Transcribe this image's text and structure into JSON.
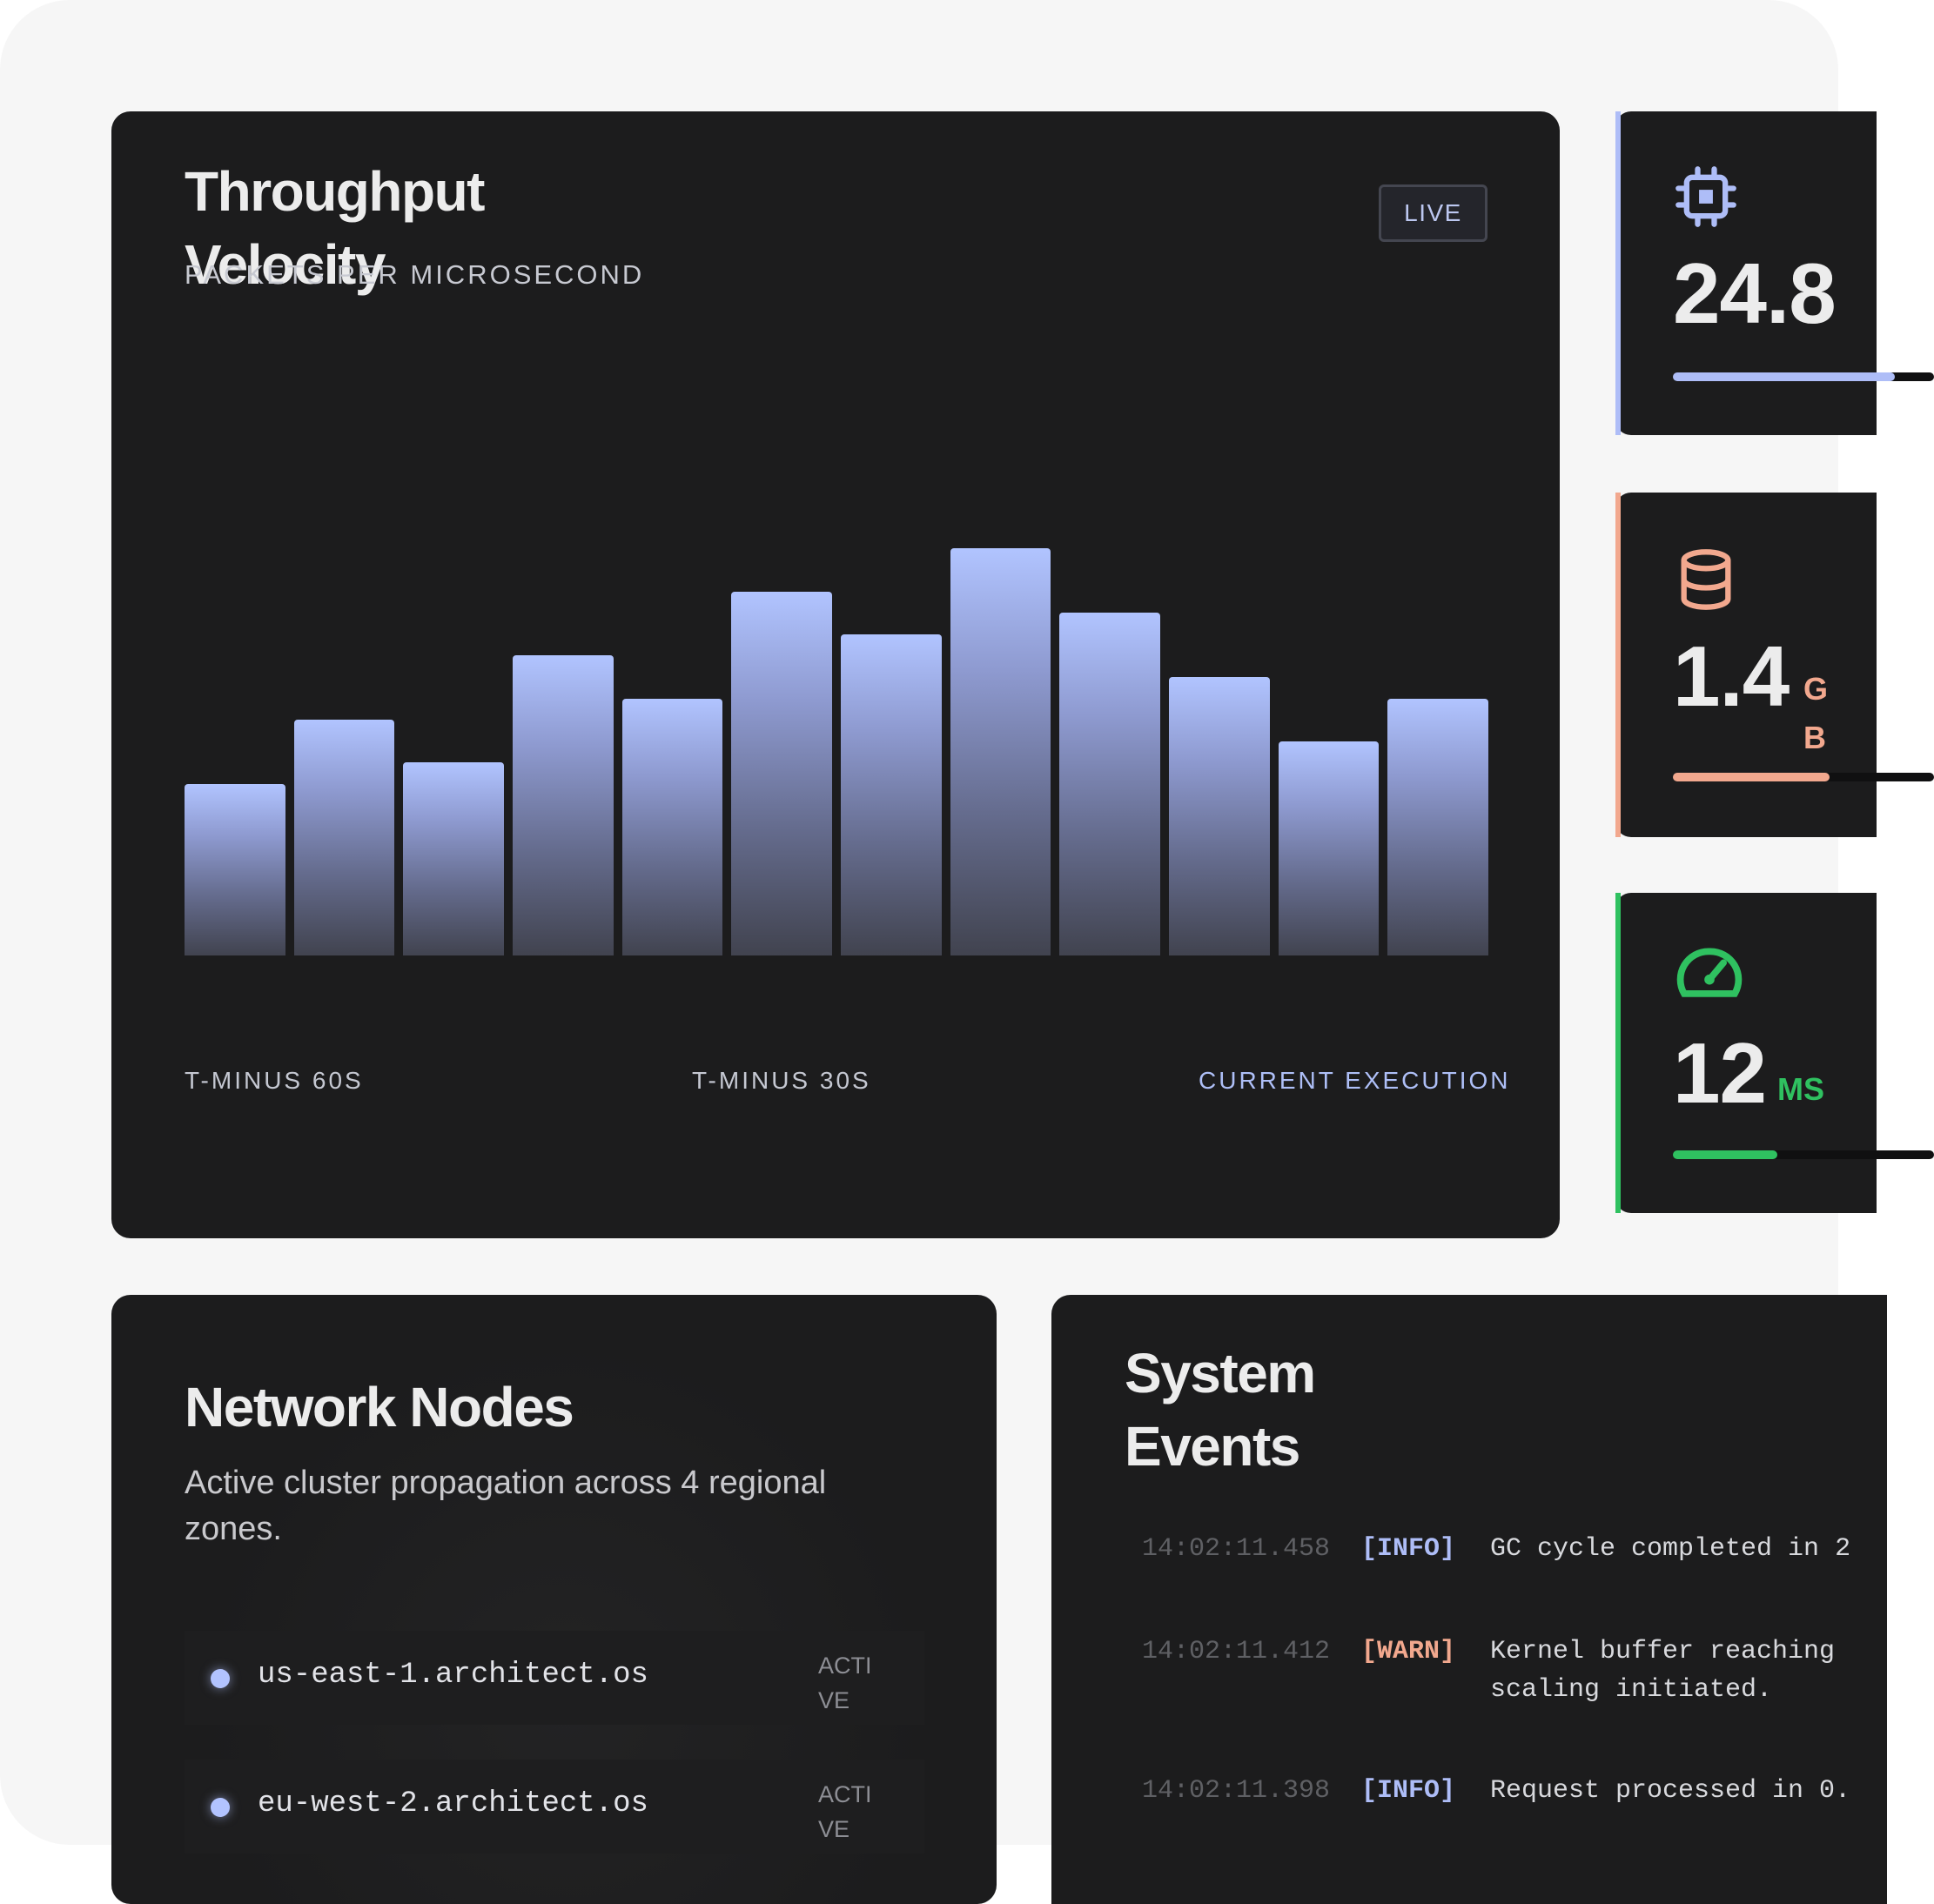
{
  "throughput": {
    "title": "Throughput Velocity",
    "subtitle": "PACKETS PER MICROSECOND",
    "live_label": "LIVE",
    "x_labels": [
      "T-MINUS 60S",
      "T-MINUS 30S",
      "CURRENT EXECUTION"
    ]
  },
  "chart_data": {
    "type": "bar",
    "values": [
      40,
      55,
      45,
      70,
      60,
      85,
      75,
      95,
      80,
      65,
      50,
      60
    ],
    "ylim": [
      0,
      130
    ],
    "bar_gradient": [
      "#b1c4ff",
      "#41434f"
    ]
  },
  "metrics": [
    {
      "value": "24.8",
      "unit": "",
      "icon": "cpu-chip-icon",
      "color": "#aebdf7",
      "progress": 0.85
    },
    {
      "value": "1.4",
      "unit": "GB",
      "icon": "database-icon",
      "color": "#f2a88e",
      "progress": 0.6
    },
    {
      "value": "12",
      "unit": "MS",
      "icon": "speedometer-icon",
      "color": "#2fc160",
      "progress": 0.4
    }
  ],
  "network": {
    "title": "Network Nodes",
    "description": "Active cluster propagation across 4 regional zones.",
    "nodes": [
      {
        "host": "us-east-1.architect.os",
        "status": "ACTIVE"
      },
      {
        "host": "eu-west-2.architect.os",
        "status": "ACTIVE"
      }
    ]
  },
  "events": {
    "title": "System Events",
    "items": [
      {
        "time": "14:02:11.458",
        "level": "[INFO]",
        "level_color": "#aebdf7",
        "message": "GC cycle completed in 2"
      },
      {
        "time": "14:02:11.412",
        "level": "[WARN]",
        "level_color": "#f2a88e",
        "message": "Kernel buffer reaching scaling initiated."
      },
      {
        "time": "14:02:11.398",
        "level": "[INFO]",
        "level_color": "#aebdf7",
        "message": "Request processed in 0."
      }
    ]
  }
}
